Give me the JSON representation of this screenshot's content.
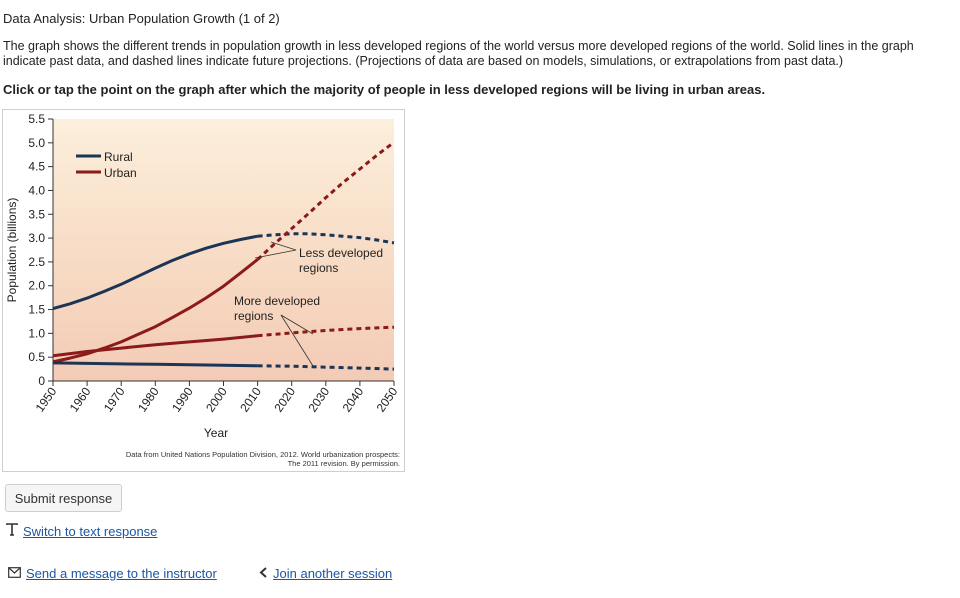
{
  "question": {
    "title": "Data Analysis: Urban Population Growth (1 of 2)",
    "description": "The graph shows the different trends in population growth in less developed regions of the world versus more developed regions of the world. Solid lines in the graph indicate past data, and dashed lines indicate future projections. (Projections of data are based on models, simulations, or extrapolations from past data.)",
    "prompt": "Click or tap the point on the graph after which the majority of people in less developed regions will be living in urban areas."
  },
  "figure": {
    "credit_line1": "Data from United Nations Population Division, 2012. World urbanization prospects:",
    "credit_line2": "The 2011 revision. By permission."
  },
  "chart_data": {
    "type": "line",
    "xlabel": "Year",
    "ylabel": "Population (billions)",
    "xlim": [
      1950,
      2050
    ],
    "ylim": [
      0,
      5.5
    ],
    "x_ticks": [
      "1950",
      "1960",
      "1970",
      "1980",
      "1990",
      "2000",
      "2010",
      "2020",
      "2030",
      "2040",
      "2050"
    ],
    "y_ticks": [
      "0",
      "0.5",
      "1.0",
      "1.5",
      "2.0",
      "2.5",
      "3.0",
      "3.5",
      "4.0",
      "4.5",
      "5.0",
      "5.5"
    ],
    "legend": [
      {
        "name": "Rural",
        "color": "#1c3557"
      },
      {
        "name": "Urban",
        "color": "#8b1a1a"
      }
    ],
    "annotations": {
      "less_developed": [
        "Less developed",
        "regions"
      ],
      "more_developed": [
        "More developed",
        "regions"
      ]
    },
    "series": [
      {
        "group": "less-developed-rural",
        "color": "#1c3557",
        "observed_through": 2011,
        "x": [
          1950,
          1955,
          1960,
          1965,
          1970,
          1975,
          1980,
          1985,
          1990,
          1995,
          2000,
          2005,
          2010,
          2015,
          2020,
          2025,
          2030,
          2035,
          2040,
          2045,
          2050
        ],
        "y": [
          1.52,
          1.62,
          1.74,
          1.88,
          2.03,
          2.2,
          2.37,
          2.53,
          2.67,
          2.79,
          2.89,
          2.97,
          3.04,
          3.07,
          3.09,
          3.09,
          3.07,
          3.04,
          3.01,
          2.96,
          2.9
        ]
      },
      {
        "group": "less-developed-urban",
        "color": "#8b1a1a",
        "observed_through": 2011,
        "x": [
          1950,
          1955,
          1960,
          1965,
          1970,
          1975,
          1980,
          1985,
          1990,
          1995,
          2000,
          2005,
          2010,
          2015,
          2020,
          2025,
          2030,
          2035,
          2040,
          2045,
          2050
        ],
        "y": [
          0.4,
          0.48,
          0.57,
          0.69,
          0.82,
          0.98,
          1.14,
          1.33,
          1.53,
          1.75,
          1.99,
          2.27,
          2.55,
          2.88,
          3.2,
          3.52,
          3.85,
          4.16,
          4.45,
          4.74,
          5.01
        ]
      },
      {
        "group": "more-developed-urban",
        "color": "#8b1a1a",
        "observed_through": 2011,
        "x": [
          1950,
          1960,
          1970,
          1980,
          1990,
          2000,
          2010,
          2020,
          2030,
          2040,
          2050
        ],
        "y": [
          0.53,
          0.62,
          0.69,
          0.76,
          0.82,
          0.88,
          0.95,
          1.01,
          1.06,
          1.1,
          1.13
        ]
      },
      {
        "group": "more-developed-rural",
        "color": "#1c3557",
        "observed_through": 2011,
        "x": [
          1950,
          1960,
          1970,
          1980,
          1990,
          2000,
          2010,
          2020,
          2030,
          2040,
          2050
        ],
        "y": [
          0.38,
          0.37,
          0.36,
          0.35,
          0.34,
          0.33,
          0.32,
          0.31,
          0.29,
          0.27,
          0.25
        ]
      }
    ]
  },
  "actions": {
    "submit_label": "Submit response",
    "switch_label": "Switch to text response",
    "message_label": "Send a message to the instructor",
    "join_label": "Join another session"
  },
  "icons": {
    "switch": "text-cursor-icon",
    "message": "envelope-icon",
    "join": "chevron-left-icon"
  }
}
